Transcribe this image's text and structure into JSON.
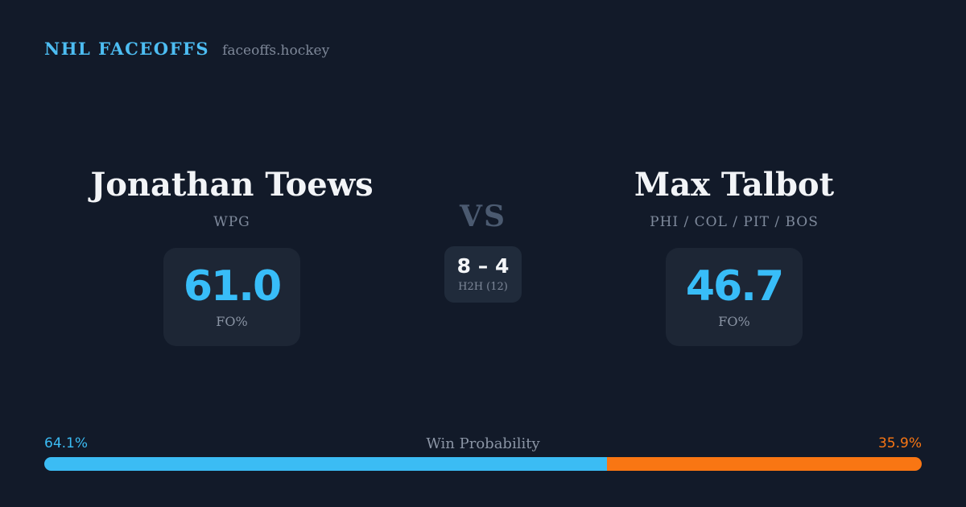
{
  "header": {
    "brand": "NHL FACEOFFS",
    "site": "faceoffs.hockey"
  },
  "left_player": {
    "name": "Jonathan Toews",
    "teams": "WPG",
    "stat_value": "61.0",
    "stat_label": "FO%"
  },
  "right_player": {
    "name": "Max Talbot",
    "teams": "PHI / COL / PIT / BOS",
    "stat_value": "46.7",
    "stat_label": "FO%"
  },
  "center": {
    "vs_label": "VS",
    "h2h_score": "8 – 4",
    "h2h_label": "H2H (12)"
  },
  "win_probability": {
    "title": "Win Probability",
    "left_pct_label": "64.1%",
    "right_pct_label": "35.9%",
    "left_value": 64.1,
    "right_value": 35.9
  },
  "colors": {
    "background": "#121a29",
    "box_background": "#1d2635",
    "accent_blue": "#3bbcf4",
    "accent_orange": "#f97613",
    "brand_blue": "#4dbdf2",
    "muted_text": "#7f8a9c",
    "vs_text": "#4b5a70",
    "primary_text": "#f2f4f7"
  }
}
